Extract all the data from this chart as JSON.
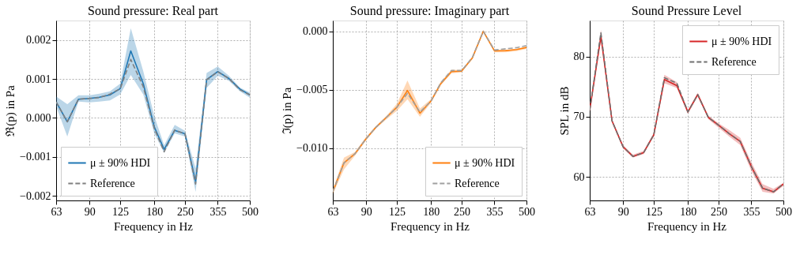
{
  "chart_data": [
    {
      "type": "line",
      "title": "Sound pressure: Real part",
      "xlabel": "Frequency in Hz",
      "ylabel": "ℜ(p) in Pa",
      "log": "x",
      "grid": true,
      "legend": "bottom left",
      "x": [
        63,
        71,
        80,
        90,
        100,
        112,
        125,
        140,
        160,
        180,
        200,
        224,
        250,
        280,
        315,
        355,
        400,
        450,
        500
      ],
      "xlim": [
        63,
        500
      ],
      "xticks": [
        63,
        90,
        125,
        180,
        250,
        355,
        500
      ],
      "ylim": [
        -0.00212,
        0.0025
      ],
      "yticks": [
        {
          "value": -0.002,
          "label": "−0.002"
        },
        {
          "value": -0.001,
          "label": "−0.001"
        },
        {
          "value": 0,
          "label": "0.000"
        },
        {
          "value": 0.001,
          "label": "0.001"
        },
        {
          "value": 0.002,
          "label": "0.002"
        }
      ],
      "series": [
        {
          "name": "μ ± 90% HDI",
          "color": "#1f77b4",
          "values": [
            0.00041,
            -0.0001,
            0.00048,
            0.0005,
            0.00053,
            0.00059,
            0.00075,
            0.00172,
            0.00088,
            -0.00023,
            -0.00081,
            -0.00032,
            -0.00041,
            -0.00164,
            0.00098,
            0.00119,
            0.00101,
            0.00074,
            0.00059
          ],
          "lower": [
            0.0003,
            -0.00048,
            0.00042,
            0.0004,
            0.00042,
            0.00045,
            0.0006,
            0.0011,
            0.0006,
            -0.0004,
            -0.0009,
            -0.0004,
            -0.00048,
            -0.0019,
            0.00077,
            0.00108,
            0.00095,
            0.00068,
            0.00052
          ],
          "upper": [
            0.00055,
            0.00035,
            0.00058,
            0.00058,
            0.00062,
            0.00068,
            0.00088,
            0.0023,
            0.0012,
            5e-05,
            -0.0007,
            -0.00018,
            -0.00033,
            -0.0013,
            0.00115,
            0.00132,
            0.00108,
            0.00078,
            0.00065
          ]
        },
        {
          "name": "Reference",
          "color": "#808080",
          "line_style": "dashed",
          "values": [
            0.00041,
            -0.0001,
            0.00048,
            0.0005,
            0.00052,
            0.00061,
            0.00075,
            0.0015,
            0.0008,
            -0.00027,
            -0.00087,
            -0.00031,
            -0.00041,
            -0.0017,
            0.00098,
            0.00118,
            0.00101,
            0.00072,
            0.00059
          ]
        }
      ]
    },
    {
      "type": "line",
      "title": "Sound pressure: Imaginary part",
      "xlabel": "Frequency in Hz",
      "ylabel": "ℑ(p) in Pa",
      "log": "x",
      "grid": true,
      "legend": "bottom right",
      "x": [
        63,
        71,
        80,
        90,
        100,
        112,
        125,
        140,
        160,
        180,
        200,
        224,
        250,
        280,
        315,
        355,
        400,
        450,
        500
      ],
      "xlim": [
        63,
        500
      ],
      "xticks": [
        63,
        90,
        125,
        180,
        250,
        355,
        500
      ],
      "ylim": [
        -0.01445,
        0.00092
      ],
      "yticks": [
        {
          "value": -0.01,
          "label": "−0.010"
        },
        {
          "value": -0.005,
          "label": "−0.005"
        },
        {
          "value": 0,
          "label": "0.000"
        }
      ],
      "series": [
        {
          "name": "μ ± 90% HDI",
          "color": "#ff7f0e",
          "values": [
            -0.0137,
            -0.01124,
            -0.01044,
            -0.00917,
            -0.00819,
            -0.00734,
            -0.00649,
            -0.00505,
            -0.007,
            -0.00596,
            -0.00447,
            -0.00344,
            -0.0034,
            -0.00229,
            0,
            -0.00167,
            -0.00165,
            -0.00156,
            -0.00138
          ],
          "lower": [
            -0.0139,
            -0.0118,
            -0.0106,
            -0.0093,
            -0.0083,
            -0.0075,
            -0.0068,
            -0.0058,
            -0.0073,
            -0.0061,
            -0.0046,
            -0.0036,
            -0.0035,
            -0.0024,
            -0.0001,
            -0.0018,
            -0.0018,
            -0.0017,
            -0.0015
          ],
          "upper": [
            -0.0135,
            -0.0108,
            -0.0103,
            -0.009,
            -0.0081,
            -0.0072,
            -0.0062,
            -0.0042,
            -0.0066,
            -0.0058,
            -0.0043,
            -0.0033,
            -0.0033,
            -0.0022,
            0.0001,
            -0.0016,
            -0.0016,
            -0.0015,
            -0.0013
          ]
        },
        {
          "name": "Reference",
          "color": "#a0a0a0",
          "line_style": "dashed",
          "values": [
            -0.0137,
            -0.01124,
            -0.01044,
            -0.00917,
            -0.00819,
            -0.00734,
            -0.00649,
            -0.0053,
            -0.0069,
            -0.00596,
            -0.0044,
            -0.00335,
            -0.00335,
            -0.00225,
            0,
            -0.0016,
            -0.0015,
            -0.0014,
            -0.00122
          ]
        }
      ]
    },
    {
      "type": "line",
      "title": "Sound Pressure Level",
      "xlabel": "Frequency in Hz",
      "ylabel": "SPL in dB",
      "log": "x",
      "grid": true,
      "legend": "top right",
      "x": [
        63,
        71,
        80,
        90,
        100,
        112,
        125,
        140,
        160,
        180,
        200,
        224,
        250,
        280,
        315,
        355,
        400,
        450,
        500
      ],
      "xlim": [
        63,
        500
      ],
      "xticks": [
        63,
        90,
        125,
        180,
        250,
        355,
        500
      ],
      "ylim": [
        56.06,
        86.04
      ],
      "yticks": [
        60,
        70,
        80
      ],
      "series": [
        {
          "name": "μ ± 90% HDI",
          "color": "#d62728",
          "values": [
            71.1,
            83.4,
            69.3,
            65.0,
            63.4,
            64.0,
            67.0,
            76.2,
            75.2,
            70.8,
            73.7,
            69.9,
            68.6,
            67.2,
            65.9,
            61.7,
            58.1,
            57.5,
            58.8
          ],
          "lower": [
            70.8,
            82.8,
            69.0,
            64.7,
            63.2,
            63.8,
            66.7,
            75.6,
            74.8,
            70.5,
            73.4,
            69.6,
            68.2,
            66.7,
            65.3,
            61.0,
            57.5,
            57.2,
            58.5
          ],
          "upper": [
            71.3,
            84.5,
            69.5,
            65.3,
            63.7,
            64.3,
            67.3,
            77.0,
            75.8,
            71.1,
            74.0,
            70.2,
            68.9,
            67.8,
            66.5,
            62.4,
            58.8,
            58.0,
            59.0
          ]
        },
        {
          "name": "Reference",
          "color": "#707070",
          "line_style": "dashed",
          "values": [
            71.1,
            84.0,
            69.3,
            65.0,
            63.4,
            64.0,
            67.0,
            76.5,
            75.6,
            70.8,
            73.7,
            69.9,
            68.6,
            67.2,
            65.9,
            61.7,
            58.1,
            57.5,
            58.8
          ]
        }
      ]
    }
  ]
}
